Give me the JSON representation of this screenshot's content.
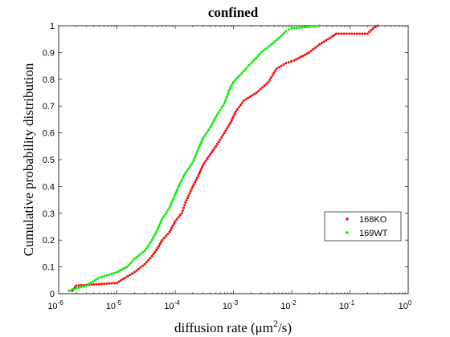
{
  "chart_data": {
    "type": "scatter",
    "title": "confined",
    "xlabel_main": "diffusion rate (μm",
    "xlabel_sup": "2",
    "xlabel_tail": "/s)",
    "ylabel": "Cumulative probability distribution",
    "x_scale": "log",
    "xlim": [
      1e-06,
      1
    ],
    "ylim": [
      0,
      1
    ],
    "grid": false,
    "legend_position": "lower-right",
    "x_ticks": [
      {
        "base": "10",
        "exp": "-6",
        "value": 1e-06
      },
      {
        "base": "10",
        "exp": "-5",
        "value": 1e-05
      },
      {
        "base": "10",
        "exp": "-4",
        "value": 0.0001
      },
      {
        "base": "10",
        "exp": "-3",
        "value": 0.001
      },
      {
        "base": "10",
        "exp": "-2",
        "value": 0.01
      },
      {
        "base": "10",
        "exp": "-1",
        "value": 0.1
      },
      {
        "base": "10",
        "exp": "0",
        "value": 1
      }
    ],
    "y_ticks": [
      "0",
      "0.1",
      "0.2",
      "0.3",
      "0.4",
      "0.5",
      "0.6",
      "0.7",
      "0.8",
      "0.9",
      "1"
    ],
    "series": [
      {
        "name": "168KO",
        "color": "#ff0000",
        "curve": [
          [
            1.7e-06,
            0.01
          ],
          [
            2e-06,
            0.03
          ],
          [
            1e-05,
            0.04
          ],
          [
            1.4e-05,
            0.06
          ],
          [
            2e-05,
            0.08
          ],
          [
            3e-05,
            0.11
          ],
          [
            4e-05,
            0.14
          ],
          [
            5e-05,
            0.17
          ],
          [
            6e-05,
            0.2
          ],
          [
            8e-05,
            0.23
          ],
          [
            0.0001,
            0.27
          ],
          [
            0.00013,
            0.3
          ],
          [
            0.00015,
            0.34
          ],
          [
            0.0002,
            0.4
          ],
          [
            0.00025,
            0.44
          ],
          [
            0.0003,
            0.48
          ],
          [
            0.0004,
            0.52
          ],
          [
            0.0005,
            0.55
          ],
          [
            0.0007,
            0.6
          ],
          [
            0.0009,
            0.64
          ],
          [
            0.0011,
            0.68
          ],
          [
            0.0015,
            0.72
          ],
          [
            0.0025,
            0.75
          ],
          [
            0.004,
            0.79
          ],
          [
            0.0055,
            0.84
          ],
          [
            0.008,
            0.86
          ],
          [
            0.011,
            0.87
          ],
          [
            0.02,
            0.9
          ],
          [
            0.03,
            0.93
          ],
          [
            0.05,
            0.96
          ],
          [
            0.058,
            0.97
          ],
          [
            0.2,
            0.97
          ],
          [
            0.25,
            0.99
          ],
          [
            0.3,
            1.0
          ]
        ]
      },
      {
        "name": "169WT",
        "color": "#00ee00",
        "curve": [
          [
            1.5e-06,
            0.01
          ],
          [
            2e-06,
            0.02
          ],
          [
            3e-06,
            0.03
          ],
          [
            5e-06,
            0.06
          ],
          [
            1e-05,
            0.08
          ],
          [
            1.5e-05,
            0.1
          ],
          [
            2e-05,
            0.13
          ],
          [
            3e-05,
            0.16
          ],
          [
            4e-05,
            0.2
          ],
          [
            5e-05,
            0.24
          ],
          [
            6e-05,
            0.28
          ],
          [
            8e-05,
            0.32
          ],
          [
            0.0001,
            0.37
          ],
          [
            0.00012,
            0.41
          ],
          [
            0.00015,
            0.45
          ],
          [
            0.0002,
            0.49
          ],
          [
            0.00025,
            0.54
          ],
          [
            0.0003,
            0.58
          ],
          [
            0.0004,
            0.62
          ],
          [
            0.0005,
            0.66
          ],
          [
            0.0007,
            0.71
          ],
          [
            0.00085,
            0.76
          ],
          [
            0.001,
            0.79
          ],
          [
            0.0015,
            0.83
          ],
          [
            0.002,
            0.86
          ],
          [
            0.003,
            0.9
          ],
          [
            0.0045,
            0.93
          ],
          [
            0.0065,
            0.96
          ],
          [
            0.008,
            0.98
          ],
          [
            0.01,
            0.99
          ],
          [
            0.03,
            1.0
          ]
        ]
      }
    ]
  }
}
